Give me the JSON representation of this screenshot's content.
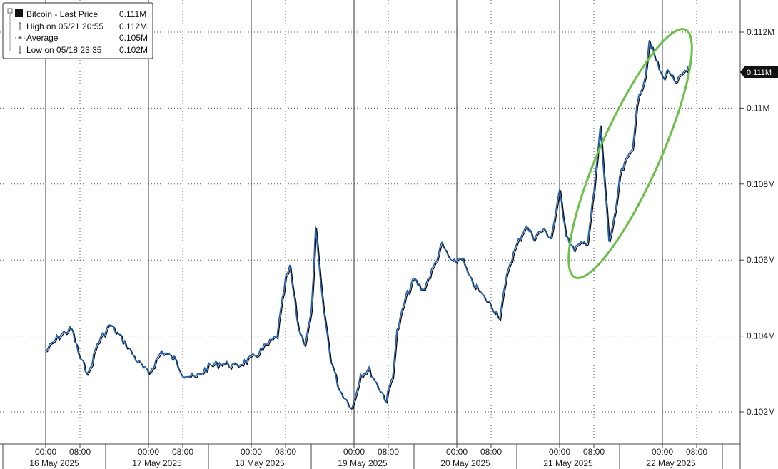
{
  "chart_data": {
    "type": "line",
    "series": [
      {
        "name": "Bitcoin - Last Price",
        "color": "#1f5fb0",
        "shadow_color": "#000000",
        "points": [
          [
            "16 May 00:00",
            0.1036
          ],
          [
            "16 May 03:00",
            0.104
          ],
          [
            "16 May 06:00",
            0.1042
          ],
          [
            "16 May 08:00",
            0.1034
          ],
          [
            "16 May 10:00",
            0.103
          ],
          [
            "16 May 12:00",
            0.1038
          ],
          [
            "16 May 15:00",
            0.1043
          ],
          [
            "16 May 18:00",
            0.1039
          ],
          [
            "16 May 21:00",
            0.1034
          ],
          [
            "17 May 00:00",
            0.103
          ],
          [
            "17 May 03:00",
            0.1036
          ],
          [
            "17 May 06:00",
            0.1034
          ],
          [
            "17 May 08:00",
            0.103
          ],
          [
            "17 May 11:00",
            0.1029
          ],
          [
            "17 May 14:00",
            0.1032
          ],
          [
            "17 May 17:00",
            0.1033
          ],
          [
            "17 May 20:00",
            0.1032
          ],
          [
            "18 May 00:00",
            0.1034
          ],
          [
            "18 May 03:00",
            0.1037
          ],
          [
            "18 May 06:00",
            0.104
          ],
          [
            "18 May 08:00",
            0.1055
          ],
          [
            "18 May 09:00",
            0.1058
          ],
          [
            "18 May 11:00",
            0.1042
          ],
          [
            "18 May 12:30",
            0.1038
          ],
          [
            "18 May 14:00",
            0.1046
          ],
          [
            "18 May 15:00",
            0.1068
          ],
          [
            "18 May 16:30",
            0.105
          ],
          [
            "18 May 18:30",
            0.1034
          ],
          [
            "18 May 20:30",
            0.1026
          ],
          [
            "18 May 23:35",
            0.1021
          ],
          [
            "19 May 01:30",
            0.103
          ],
          [
            "19 May 03:30",
            0.1031
          ],
          [
            "19 May 06:00",
            0.1026
          ],
          [
            "19 May 07:30",
            0.1023
          ],
          [
            "19 May 09:00",
            0.103
          ],
          [
            "19 May 10:00",
            0.1041
          ],
          [
            "19 May 12:00",
            0.105
          ],
          [
            "19 May 14:00",
            0.1055
          ],
          [
            "19 May 16:00",
            0.1052
          ],
          [
            "19 May 18:30",
            0.1058
          ],
          [
            "19 May 20:30",
            0.1064
          ],
          [
            "19 May 23:00",
            0.1059
          ],
          [
            "20 May 01:00",
            0.1061
          ],
          [
            "20 May 03:00",
            0.1055
          ],
          [
            "20 May 05:00",
            0.1052
          ],
          [
            "20 May 08:00",
            0.1048
          ],
          [
            "20 May 10:00",
            0.1045
          ],
          [
            "20 May 12:00",
            0.1058
          ],
          [
            "20 May 14:00",
            0.1064
          ],
          [
            "20 May 16:00",
            0.1069
          ],
          [
            "20 May 18:00",
            0.1066
          ],
          [
            "20 May 20:00",
            0.1068
          ],
          [
            "20 May 22:00",
            0.1066
          ],
          [
            "21 May 00:00",
            0.1078
          ],
          [
            "21 May 01:30",
            0.1067
          ],
          [
            "21 May 03:00",
            0.1063
          ],
          [
            "21 May 05:00",
            0.1064
          ],
          [
            "21 May 06:30",
            0.1065
          ],
          [
            "21 May 08:00",
            0.1078
          ],
          [
            "21 May 09:30",
            0.1095
          ],
          [
            "21 May 10:30",
            0.108
          ],
          [
            "21 May 11:30",
            0.1065
          ],
          [
            "21 May 13:00",
            0.1072
          ],
          [
            "21 May 14:00",
            0.1082
          ],
          [
            "21 May 15:30",
            0.1086
          ],
          [
            "21 May 17:00",
            0.109
          ],
          [
            "21 May 18:00",
            0.11
          ],
          [
            "21 May 19:00",
            0.1105
          ],
          [
            "21 May 20:00",
            0.1109
          ],
          [
            "21 May 20:55",
            0.1118
          ],
          [
            "21 May 22:00",
            0.1114
          ],
          [
            "22 May 00:00",
            0.1108
          ],
          [
            "22 May 01:30",
            0.111
          ],
          [
            "22 May 03:00",
            0.1106
          ],
          [
            "22 May 04:30",
            0.1109
          ],
          [
            "22 May 06:00",
            0.1111
          ]
        ]
      }
    ],
    "x_ticks": [
      "00:00",
      "08:00",
      "00:00",
      "08:00",
      "00:00",
      "08:00",
      "00:00",
      "08:00",
      "00:00",
      "08:00",
      "00:00",
      "08:00",
      "00:00",
      "08:00"
    ],
    "x_day_labels": [
      "16 May 2025",
      "17 May 2025",
      "18 May 2025",
      "19 May 2025",
      "20 May 2025",
      "21 May 2025",
      "22 May 2025"
    ],
    "y_ticks": [
      "0.102M",
      "0.104M",
      "0.106M",
      "0.108M",
      "0.11M",
      "0.112M"
    ],
    "ylim": [
      0.1012,
      0.1128
    ],
    "grid": true,
    "last_price_tag": "0.111M",
    "legend": {
      "placement": "top-left",
      "entries": [
        {
          "icon": "filled-square-icon",
          "label": "Bitcoin - Last Price",
          "value": "0.111M"
        },
        {
          "icon": "high-marker-icon",
          "label": "High on 05/21 20:55",
          "value": "0.112M"
        },
        {
          "icon": "average-marker-icon",
          "label": "Average",
          "value": "0.105M"
        },
        {
          "icon": "low-marker-icon",
          "label": "Low on 05/18 23:35",
          "value": "0.102M"
        }
      ]
    },
    "annotation": {
      "shape": "ellipse",
      "color": "#6cc04a",
      "covers_from": "21 May 03:00",
      "covers_to": "22 May 00:00"
    }
  }
}
